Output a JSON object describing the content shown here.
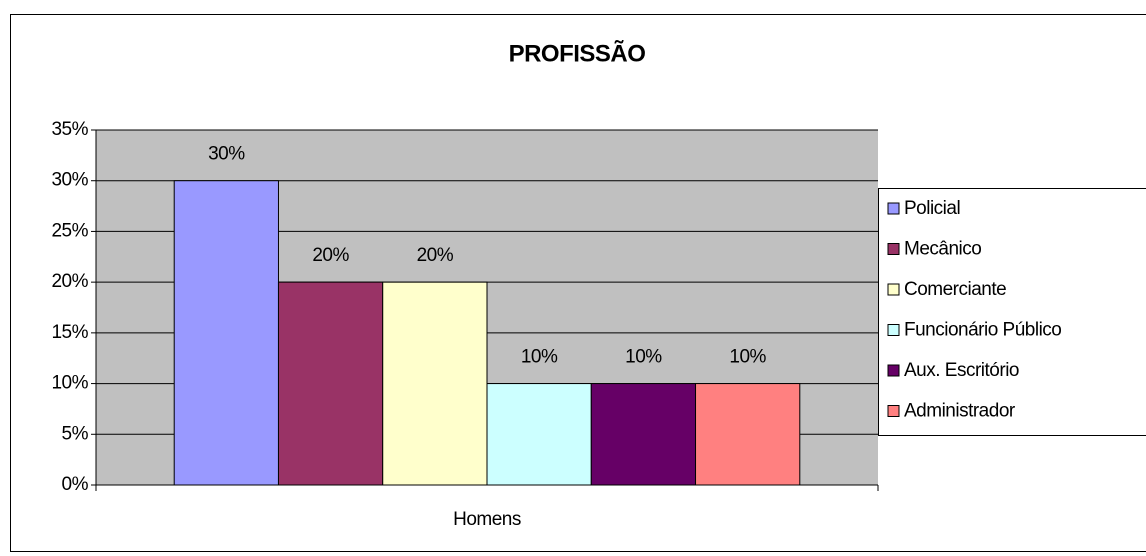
{
  "chart_data": {
    "type": "bar",
    "title": "PROFISSÃO",
    "categories": [
      "Homens"
    ],
    "series": [
      {
        "name": "Policial",
        "color": "#9999ff",
        "values": [
          30
        ],
        "value_labels": [
          "30%"
        ]
      },
      {
        "name": "Mecânico",
        "color": "#993366",
        "values": [
          20
        ],
        "value_labels": [
          "20%"
        ]
      },
      {
        "name": "Comerciante",
        "color": "#ffffcc",
        "values": [
          20
        ],
        "value_labels": [
          "20%"
        ]
      },
      {
        "name": "Funcionário Público",
        "color": "#ccffff",
        "values": [
          10
        ],
        "value_labels": [
          "10%"
        ]
      },
      {
        "name": "Aux. Escritório",
        "color": "#660066",
        "values": [
          10
        ],
        "value_labels": [
          "10%"
        ]
      },
      {
        "name": "Administrador",
        "color": "#ff8080",
        "values": [
          10
        ],
        "value_labels": [
          "10%"
        ]
      }
    ],
    "ylim": [
      0,
      35
    ],
    "yticks": [
      {
        "value": 0,
        "label": "0%"
      },
      {
        "value": 5,
        "label": "5%"
      },
      {
        "value": 10,
        "label": "10%"
      },
      {
        "value": 15,
        "label": "15%"
      },
      {
        "value": 20,
        "label": "20%"
      },
      {
        "value": 25,
        "label": "25%"
      },
      {
        "value": 30,
        "label": "30%"
      },
      {
        "value": 35,
        "label": "35%"
      }
    ],
    "grid": true,
    "legend": "right"
  }
}
